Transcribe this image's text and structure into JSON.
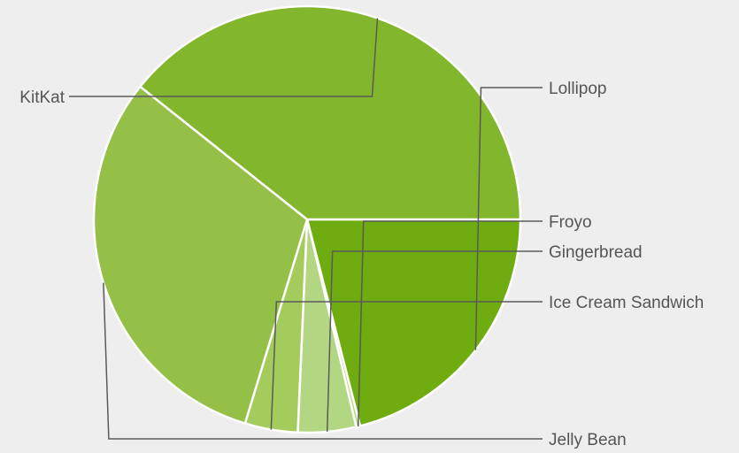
{
  "chart_data": {
    "type": "pie",
    "title": "",
    "slices": [
      {
        "label": "Lollipop",
        "value": 21.0,
        "color": "#6fac0f"
      },
      {
        "label": "Froyo",
        "value": 0.3,
        "color": "#b7d98a"
      },
      {
        "label": "Gingerbread",
        "value": 4.4,
        "color": "#b3d683"
      },
      {
        "label": "Ice Cream Sandwich",
        "value": 4.0,
        "color": "#a4cc5c"
      },
      {
        "label": "Jelly Bean",
        "value": 31.0,
        "color": "#94c047"
      },
      {
        "label": "KitKat",
        "value": 39.3,
        "color": "#82b62d"
      }
    ],
    "start_angle_deg": 0,
    "direction": "clockwise",
    "legend": "none",
    "labels": "outside-with-leader-lines"
  }
}
